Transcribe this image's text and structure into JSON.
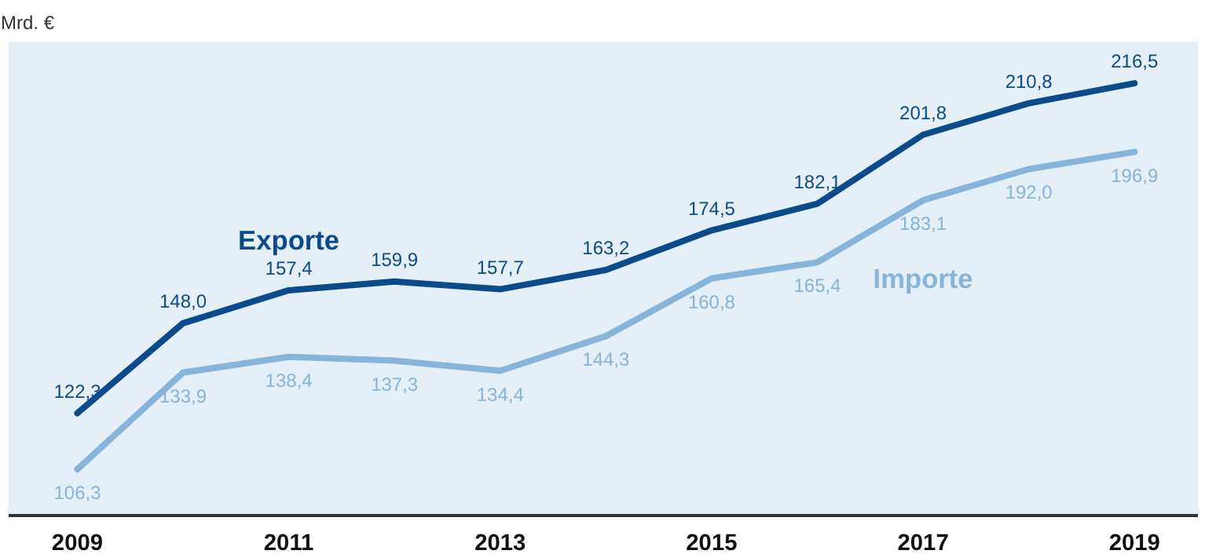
{
  "chart_data": {
    "type": "line",
    "ylabel": "Mrd. €",
    "x": [
      2009,
      2010,
      2011,
      2012,
      2013,
      2014,
      2015,
      2016,
      2017,
      2018,
      2019
    ],
    "xlim": [
      2008.35,
      2019.6
    ],
    "xticks": [
      2009,
      2011,
      2013,
      2015,
      2017,
      2019
    ],
    "series": [
      {
        "name": "Exporte",
        "color": "#0b4a8b",
        "values": [
          122.3,
          148.0,
          157.4,
          159.9,
          157.7,
          163.2,
          174.5,
          182.1,
          201.8,
          210.8,
          216.5
        ],
        "value_labels": [
          "122,3",
          "148,0",
          "157,4",
          "159,9",
          "157,7",
          "163,2",
          "174,5",
          "182,1",
          "201,8",
          "210,8",
          "216,5"
        ]
      },
      {
        "name": "Importe",
        "color": "#86b4da",
        "values": [
          106.3,
          133.9,
          138.4,
          137.3,
          134.4,
          144.3,
          160.8,
          165.4,
          183.1,
          192.0,
          196.9
        ],
        "value_labels": [
          "106,3",
          "133,9",
          "138,4",
          "137,3",
          "134,4",
          "144,3",
          "160,8",
          "165,4",
          "183,1",
          "192,0",
          "196,9"
        ]
      }
    ],
    "grid": false,
    "marker": "none",
    "line_style": "solid"
  }
}
